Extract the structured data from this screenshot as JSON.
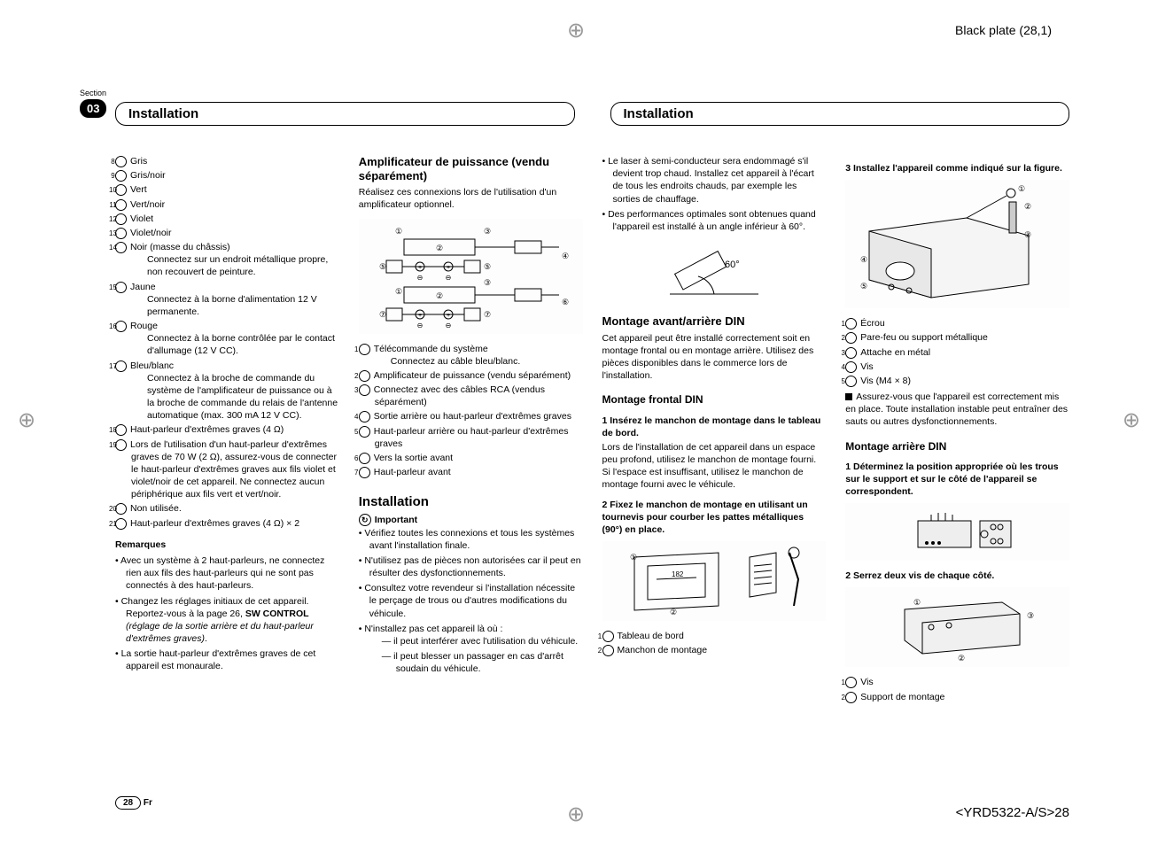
{
  "meta": {
    "black_plate": "Black plate (28,1)",
    "section_label": "Section",
    "section_number": "03",
    "page_number": "28",
    "lang_code": "Fr",
    "doc_code": "<YRD5322-A/S>28"
  },
  "headers": {
    "left": "Installation",
    "right": "Installation"
  },
  "col1": {
    "wires": [
      {
        "n": "8",
        "label": "Gris"
      },
      {
        "n": "9",
        "label": "Gris/noir"
      },
      {
        "n": "10",
        "label": "Vert"
      },
      {
        "n": "11",
        "label": "Vert/noir"
      },
      {
        "n": "12",
        "label": "Violet"
      },
      {
        "n": "13",
        "label": "Violet/noir"
      },
      {
        "n": "14",
        "label": "Noir (masse du châssis)",
        "desc": "Connectez sur un endroit métallique propre, non recouvert de peinture."
      },
      {
        "n": "15",
        "label": "Jaune",
        "desc": "Connectez à la borne d'alimentation 12 V permanente."
      },
      {
        "n": "16",
        "label": "Rouge",
        "desc": "Connectez à la borne contrôlée par le contact d'allumage (12 V CC)."
      },
      {
        "n": "17",
        "label": "Bleu/blanc",
        "desc": "Connectez à la broche de commande du système de l'amplificateur de puissance ou à la broche de commande du relais de l'antenne automatique (max. 300 mA 12 V CC)."
      },
      {
        "n": "18",
        "label": "Haut-parleur d'extrêmes graves (4 Ω)"
      },
      {
        "n": "19",
        "label": "Lors de l'utilisation d'un haut-parleur d'extrêmes graves de 70 W (2 Ω), assurez-vous de connecter le haut-parleur d'extrêmes graves aux fils violet et violet/noir de cet appareil. Ne connectez aucun périphérique aux fils vert et vert/noir."
      },
      {
        "n": "20",
        "label": "Non utilisée."
      },
      {
        "n": "21",
        "label": "Haut-parleur d'extrêmes graves (4 Ω) × 2"
      }
    ],
    "remarks_title": "Remarques",
    "remarks": [
      "Avec un système à 2 haut-parleurs, ne connectez rien aux fils des haut-parleurs qui ne sont pas connectés à des haut-parleurs.",
      "Changez les réglages initiaux de cet appareil. Reportez-vous à la page 26, <b>SW CONTROL</b> <i>(réglage de la sortie arrière et du haut-parleur d'extrêmes graves)</i>.",
      "La sortie haut-parleur d'extrêmes graves de cet appareil est monaurale."
    ]
  },
  "col2": {
    "amp_title": "Amplificateur de puissance (vendu séparément)",
    "amp_intro": "Réalisez ces connexions lors de l'utilisation d'un amplificateur optionnel.",
    "amp_legend": [
      {
        "n": "1",
        "label": "Télécommande du système",
        "desc": "Connectez au câble bleu/blanc."
      },
      {
        "n": "2",
        "label": "Amplificateur de puissance (vendu séparément)"
      },
      {
        "n": "3",
        "label": "Connectez avec des câbles RCA (vendus séparément)"
      },
      {
        "n": "4",
        "label": "Sortie arrière ou haut-parleur d'extrêmes graves"
      },
      {
        "n": "5",
        "label": "Haut-parleur arrière ou haut-parleur d'extrêmes graves"
      },
      {
        "n": "6",
        "label": "Vers la sortie avant"
      },
      {
        "n": "7",
        "label": "Haut-parleur avant"
      }
    ],
    "install_title": "Installation",
    "important_label": "Important",
    "important": [
      "Vérifiez toutes les connexions et tous les systèmes avant l'installation finale.",
      "N'utilisez pas de pièces non autorisées car il peut en résulter des dysfonctionnements.",
      "Consultez votre revendeur si l'installation nécessite le perçage de trous ou d'autres modifications du véhicule.",
      "N'installez pas cet appareil là où :"
    ],
    "important_sub": [
      "il peut interférer avec l'utilisation du véhicule.",
      "il peut blesser un passager en cas d'arrêt soudain du véhicule."
    ]
  },
  "col3": {
    "top_bullets": [
      "Le laser à semi-conducteur sera endommagé s'il devient trop chaud. Installez cet appareil à l'écart de tous les endroits chauds, par exemple les sorties de chauffage.",
      "Des performances optimales sont obtenues quand l'appareil est installé à un angle inférieur à 60°."
    ],
    "angle_label": "60°",
    "din_title": "Montage avant/arrière DIN",
    "din_intro": "Cet appareil peut être installé correctement soit en montage frontal ou en montage arrière. Utilisez des pièces disponibles dans le commerce lors de l'installation.",
    "front_title": "Montage frontal DIN",
    "front_step1": "1   Insérez le manchon de montage dans le tableau de bord.",
    "front_step1_desc": "Lors de l'installation de cet appareil dans un espace peu profond, utilisez le manchon de montage fourni. Si l'espace est insuffisant, utilisez le manchon de montage fourni avec le véhicule.",
    "front_step2": "2   Fixez le manchon de montage en utilisant un tournevis pour courber les pattes métalliques (90°) en place.",
    "front_legend": [
      {
        "n": "1",
        "label": "Tableau de bord"
      },
      {
        "n": "2",
        "label": "Manchon de montage"
      }
    ],
    "dash_width": "182"
  },
  "col4": {
    "step3": "3   Installez l'appareil comme indiqué sur la figure.",
    "step3_legend": [
      {
        "n": "1",
        "label": "Écrou"
      },
      {
        "n": "2",
        "label": "Pare-feu ou support métallique"
      },
      {
        "n": "3",
        "label": "Attache en métal"
      },
      {
        "n": "4",
        "label": "Vis"
      },
      {
        "n": "5",
        "label": "Vis (M4 × 8)"
      }
    ],
    "step3_note": "Assurez-vous que l'appareil est correctement mis en place. Toute installation instable peut entraîner des sauts ou autres dysfonctionnements.",
    "rear_title": "Montage arrière DIN",
    "rear_step1": "1   Déterminez la position appropriée où les trous sur le support et sur le côté de l'appareil se correspondent.",
    "rear_step2": "2   Serrez deux vis de chaque côté.",
    "rear_legend": [
      {
        "n": "1",
        "label": "Vis"
      },
      {
        "n": "2",
        "label": "Support de montage"
      }
    ]
  }
}
